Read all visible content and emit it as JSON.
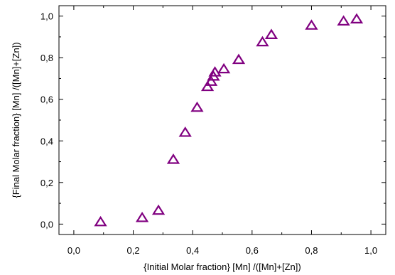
{
  "chart_data": {
    "type": "scatter",
    "xlabel": "{Initial Molar fraction} [Mn] /([Mn]+[Zn])",
    "ylabel": "{Final Molar fraction} [Mn] /([Mn]+[Zn])",
    "xlim": [
      -0.05,
      1.05
    ],
    "ylim": [
      -0.05,
      1.05
    ],
    "xticks": [
      0.0,
      0.2,
      0.4,
      0.6,
      0.8,
      1.0
    ],
    "yticks": [
      0.0,
      0.2,
      0.4,
      0.6,
      0.8,
      1.0
    ],
    "xtick_labels": [
      "0,0",
      "0,2",
      "0,4",
      "0,6",
      "0,8",
      "1,0"
    ],
    "ytick_labels": [
      "0,0",
      "0,2",
      "0,4",
      "0,6",
      "0,8",
      "1,0"
    ],
    "grid": false,
    "legend": "none",
    "marker": "open-triangle",
    "marker_color": "#800080",
    "series": [
      {
        "points": [
          [
            0.09,
            0.01
          ],
          [
            0.23,
            0.03
          ],
          [
            0.285,
            0.065
          ],
          [
            0.335,
            0.31
          ],
          [
            0.375,
            0.44
          ],
          [
            0.415,
            0.56
          ],
          [
            0.45,
            0.66
          ],
          [
            0.462,
            0.685
          ],
          [
            0.47,
            0.71
          ],
          [
            0.475,
            0.73
          ],
          [
            0.505,
            0.745
          ],
          [
            0.555,
            0.79
          ],
          [
            0.635,
            0.875
          ],
          [
            0.665,
            0.91
          ],
          [
            0.8,
            0.955
          ],
          [
            0.908,
            0.975
          ],
          [
            0.952,
            0.985
          ]
        ]
      }
    ]
  }
}
